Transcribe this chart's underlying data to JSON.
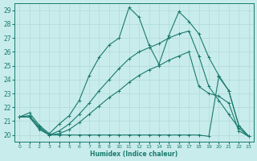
{
  "xlabel": "Humidex (Indice chaleur)",
  "xlim": [
    -0.5,
    23.5
  ],
  "ylim": [
    19.5,
    29.5
  ],
  "xticks": [
    0,
    1,
    2,
    3,
    4,
    5,
    6,
    7,
    8,
    9,
    10,
    11,
    12,
    13,
    14,
    15,
    16,
    17,
    18,
    19,
    20,
    21,
    22,
    23
  ],
  "yticks": [
    20,
    21,
    22,
    23,
    24,
    25,
    26,
    27,
    28,
    29
  ],
  "bg_color": "#c8ecec",
  "line_color": "#1a7a6e",
  "grid_color": "#b0d8d8",
  "curves": [
    {
      "x": [
        0,
        1,
        2,
        3,
        4,
        5,
        6,
        7,
        8,
        9,
        10,
        11,
        12,
        13,
        14,
        15,
        16,
        17,
        18,
        19,
        20,
        21,
        22,
        23
      ],
      "y": [
        21.3,
        21.6,
        20.7,
        20.1,
        20.8,
        21.4,
        22.5,
        24.3,
        25.6,
        26.5,
        27.0,
        29.2,
        28.5,
        26.5,
        25.1,
        27.2,
        28.9,
        28.2,
        27.3,
        25.6,
        24.3,
        23.2,
        20.7,
        19.9
      ]
    },
    {
      "x": [
        0,
        1,
        2,
        3,
        4,
        5,
        6,
        7,
        8,
        9,
        10,
        11,
        12,
        13,
        14,
        15,
        16,
        17,
        18,
        19,
        20,
        21,
        22,
        23
      ],
      "y": [
        21.3,
        21.4,
        20.6,
        20.0,
        20.3,
        20.8,
        21.5,
        22.3,
        23.2,
        24.0,
        24.8,
        25.5,
        26.0,
        26.3,
        26.6,
        27.0,
        27.3,
        27.5,
        25.7,
        23.5,
        22.5,
        21.5,
        20.5,
        19.9
      ]
    },
    {
      "x": [
        0,
        1,
        2,
        3,
        4,
        5,
        6,
        7,
        8,
        9,
        10,
        11,
        12,
        13,
        14,
        15,
        16,
        17,
        18,
        19,
        20,
        21,
        22,
        23
      ],
      "y": [
        21.3,
        21.3,
        20.5,
        20.0,
        20.1,
        20.4,
        20.9,
        21.5,
        22.1,
        22.7,
        23.2,
        23.8,
        24.3,
        24.7,
        25.0,
        25.4,
        25.7,
        26.0,
        23.5,
        23.0,
        22.8,
        22.3,
        20.3,
        19.9
      ]
    },
    {
      "x": [
        0,
        1,
        2,
        3,
        4,
        5,
        6,
        7,
        8,
        9,
        10,
        11,
        12,
        13,
        14,
        15,
        16,
        17,
        18,
        19,
        20,
        21,
        22,
        23
      ],
      "y": [
        21.3,
        21.3,
        20.4,
        20.0,
        20.0,
        20.0,
        20.0,
        20.0,
        20.0,
        20.0,
        20.0,
        20.0,
        20.0,
        20.0,
        20.0,
        20.0,
        20.0,
        20.0,
        20.0,
        19.9,
        24.2,
        23.2,
        20.7,
        19.9
      ]
    }
  ]
}
